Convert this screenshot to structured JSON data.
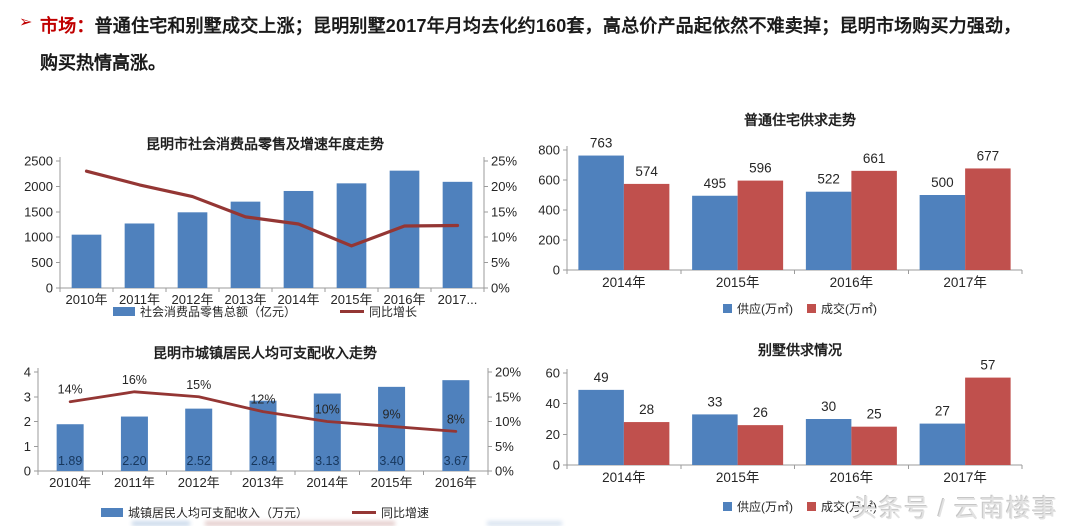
{
  "header": {
    "arrow_icon": "➢",
    "label": "市场：",
    "line1": "普通住宅和别墅成交上涨；昆明别墅2017年月均去化约160套，高总价产品起依然不难卖掉；昆明市场购买力强劲，",
    "line2": "购买热情高涨。"
  },
  "colors": {
    "blue": "#4f81bd",
    "red": "#c0504d",
    "dark_red": "#943634",
    "axis": "#9b9b9b",
    "label": "#262626",
    "navy_label": "#17375d",
    "accent_red": "#c00000"
  },
  "watermark": {
    "text": "头条号 / 云南楼事"
  },
  "chart_data": [
    {
      "type": "bar+line",
      "title": "昆明市社会消费品零售及增速年度走势",
      "categories": [
        "2010年",
        "2011年",
        "2012年",
        "2013年",
        "2014年",
        "2015年",
        "2016年",
        "2017..."
      ],
      "bar_series": {
        "name": "社会消费品零售总额（亿元）",
        "color": "blue",
        "values": [
          1050,
          1270,
          1490,
          1700,
          1910,
          2060,
          2310,
          2090
        ]
      },
      "line_series": {
        "name": "同比增长",
        "color": "dark_red",
        "values": [
          23,
          20.3,
          18,
          14,
          12.6,
          8.3,
          12.2,
          12.3
        ]
      },
      "left_axis": {
        "min": 0,
        "max": 2500,
        "step": 500,
        "suffix": ""
      },
      "right_axis": {
        "min": 0,
        "max": 25,
        "step": 5,
        "suffix": "%"
      },
      "grid": false,
      "legend_position": "bottom",
      "bar_labels": null,
      "line_labels": null
    },
    {
      "type": "bar",
      "title": "普通住宅供求走势",
      "categories": [
        "2014年",
        "2015年",
        "2016年",
        "2017年"
      ],
      "series": [
        {
          "name": "供应(万㎡)",
          "color": "blue",
          "values": [
            763,
            495,
            522,
            500
          ]
        },
        {
          "name": "成交(万㎡)",
          "color": "red",
          "values": [
            574,
            596,
            661,
            677
          ]
        }
      ],
      "y_axis": {
        "min": 0,
        "max": 800,
        "step": 200,
        "suffix": ""
      },
      "grid": false,
      "legend_position": "bottom",
      "data_labels": true
    },
    {
      "type": "bar+line",
      "title": "昆明市城镇居民人均可支配收入走势",
      "categories": [
        "2010年",
        "2011年",
        "2012年",
        "2013年",
        "2014年",
        "2015年",
        "2016年"
      ],
      "bar_series": {
        "name": "城镇居民人均可支配收入（万元）",
        "color": "blue",
        "values": [
          1.89,
          2.2,
          2.52,
          2.84,
          3.13,
          3.4,
          3.67
        ]
      },
      "line_series": {
        "name": "同比增速",
        "color": "dark_red",
        "values": [
          14,
          16,
          15,
          12,
          10,
          9,
          8
        ]
      },
      "left_axis": {
        "min": 0,
        "max": 4,
        "step": 1,
        "suffix": ""
      },
      "right_axis": {
        "min": 0,
        "max": 20,
        "step": 5,
        "suffix": "%"
      },
      "grid": false,
      "legend_position": "bottom",
      "bar_labels": [
        "1.89",
        "2.20",
        "2.52",
        "2.84",
        "3.13",
        "3.40",
        "3.67"
      ],
      "line_labels": [
        "14%",
        "16%",
        "15%",
        "12%",
        "10%",
        "9%",
        "8%"
      ]
    },
    {
      "type": "bar",
      "title": "别墅供求情况",
      "categories": [
        "2014年",
        "2015年",
        "2016年",
        "2017年"
      ],
      "series": [
        {
          "name": "供应(万㎡)",
          "color": "blue",
          "values": [
            49,
            33,
            30,
            27
          ]
        },
        {
          "name": "成交(万㎡)",
          "color": "red",
          "values": [
            28,
            26,
            25,
            57
          ]
        }
      ],
      "y_axis": {
        "min": 0,
        "max": 60,
        "step": 20,
        "suffix": ""
      },
      "grid": false,
      "legend_position": "bottom",
      "data_labels": true
    }
  ]
}
